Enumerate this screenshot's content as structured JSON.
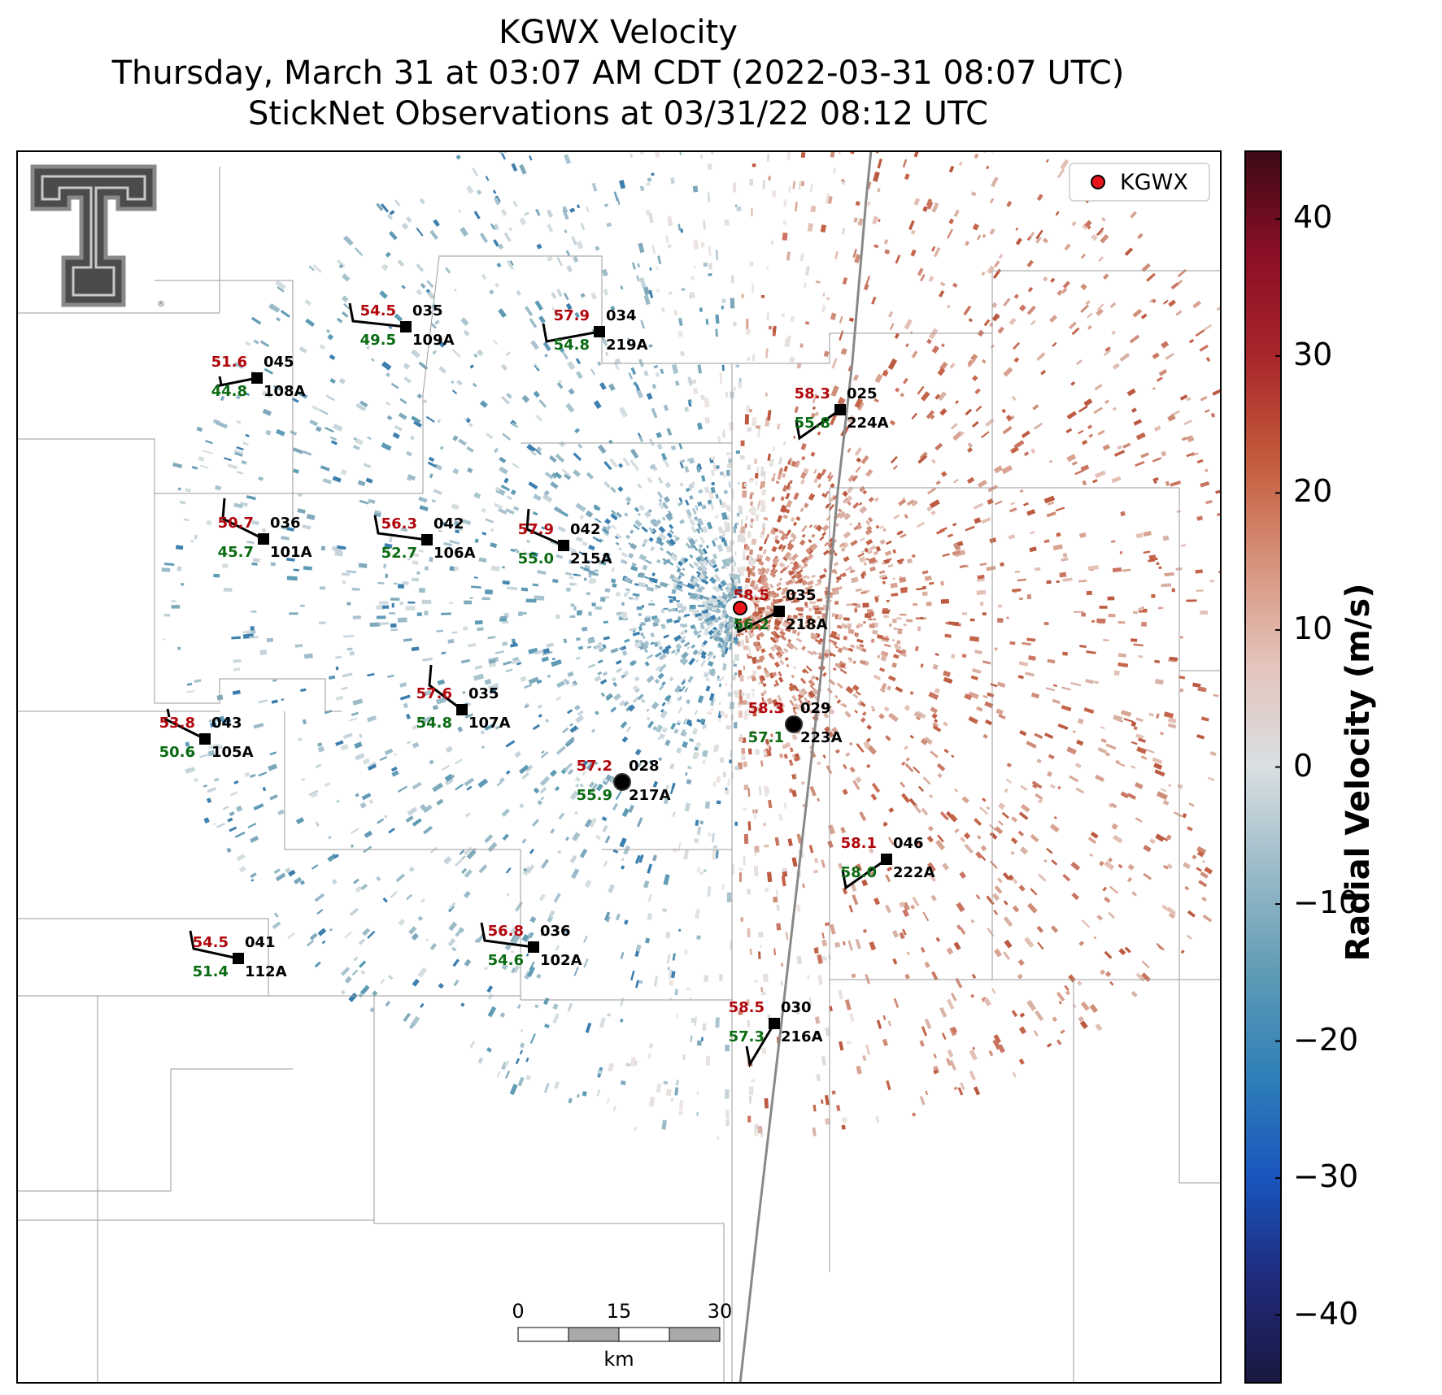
{
  "title": {
    "line1": "KGWX Velocity",
    "line2": "Thursday, March 31 at 03:07 AM CDT (2022-03-31 08:07 UTC)",
    "line3": "StickNet Observations at 03/31/22 08:12 UTC"
  },
  "legend": {
    "label": "KGWX",
    "marker_color": "#e8141a"
  },
  "colorbar": {
    "title": "Radial Velocity (m/s)",
    "min": -45,
    "max": 45,
    "ticks": [
      "40",
      "30",
      "20",
      "10",
      "0",
      "−10",
      "−20",
      "−30",
      "−40"
    ],
    "tick_values": [
      40,
      30,
      20,
      10,
      0,
      -10,
      -20,
      -30,
      -40
    ],
    "colors": [
      "#19183f",
      "#202a7a",
      "#1955be",
      "#2f80b8",
      "#5f9bb5",
      "#9bbbc8",
      "#d9dfe2",
      "#e4c4bc",
      "#d6927a",
      "#c45a3c",
      "#a8262a",
      "#8a0e26",
      "#3d0b16"
    ]
  },
  "scalebar": {
    "ticks": [
      "0",
      "15",
      "30"
    ],
    "unit": "km"
  },
  "logo": "texas-tech-double-t-logo",
  "stations": [
    {
      "id": "108A",
      "temp": "51.6",
      "dew": "44.8",
      "pres": "045"
    },
    {
      "id": "109A",
      "temp": "54.5",
      "dew": "49.5",
      "pres": "035"
    },
    {
      "id": "219A",
      "temp": "57.9",
      "dew": "54.8",
      "pres": "034"
    },
    {
      "id": "224A",
      "temp": "58.3",
      "dew": "55.8",
      "pres": "025"
    },
    {
      "id": "101A",
      "temp": "50.7",
      "dew": "45.7",
      "pres": "036"
    },
    {
      "id": "106A",
      "temp": "56.3",
      "dew": "52.7",
      "pres": "042"
    },
    {
      "id": "215A",
      "temp": "57.9",
      "dew": "55.0",
      "pres": "042"
    },
    {
      "id": "218A",
      "temp": "58.5",
      "dew": "56.2",
      "pres": "035"
    },
    {
      "id": "107A",
      "temp": "57.6",
      "dew": "54.8",
      "pres": "035"
    },
    {
      "id": "105A",
      "temp": "53.8",
      "dew": "50.6",
      "pres": "043"
    },
    {
      "id": "223A",
      "temp": "58.3",
      "dew": "57.1",
      "pres": "029"
    },
    {
      "id": "217A",
      "temp": "57.2",
      "dew": "55.9",
      "pres": "028"
    },
    {
      "id": "222A",
      "temp": "58.1",
      "dew": "58.0",
      "pres": "046"
    },
    {
      "id": "112A",
      "temp": "54.5",
      "dew": "51.4",
      "pres": "041"
    },
    {
      "id": "102A",
      "temp": "56.8",
      "dew": "54.6",
      "pres": "036"
    },
    {
      "id": "216A",
      "temp": "58.5",
      "dew": "57.3",
      "pres": "030"
    }
  ]
}
